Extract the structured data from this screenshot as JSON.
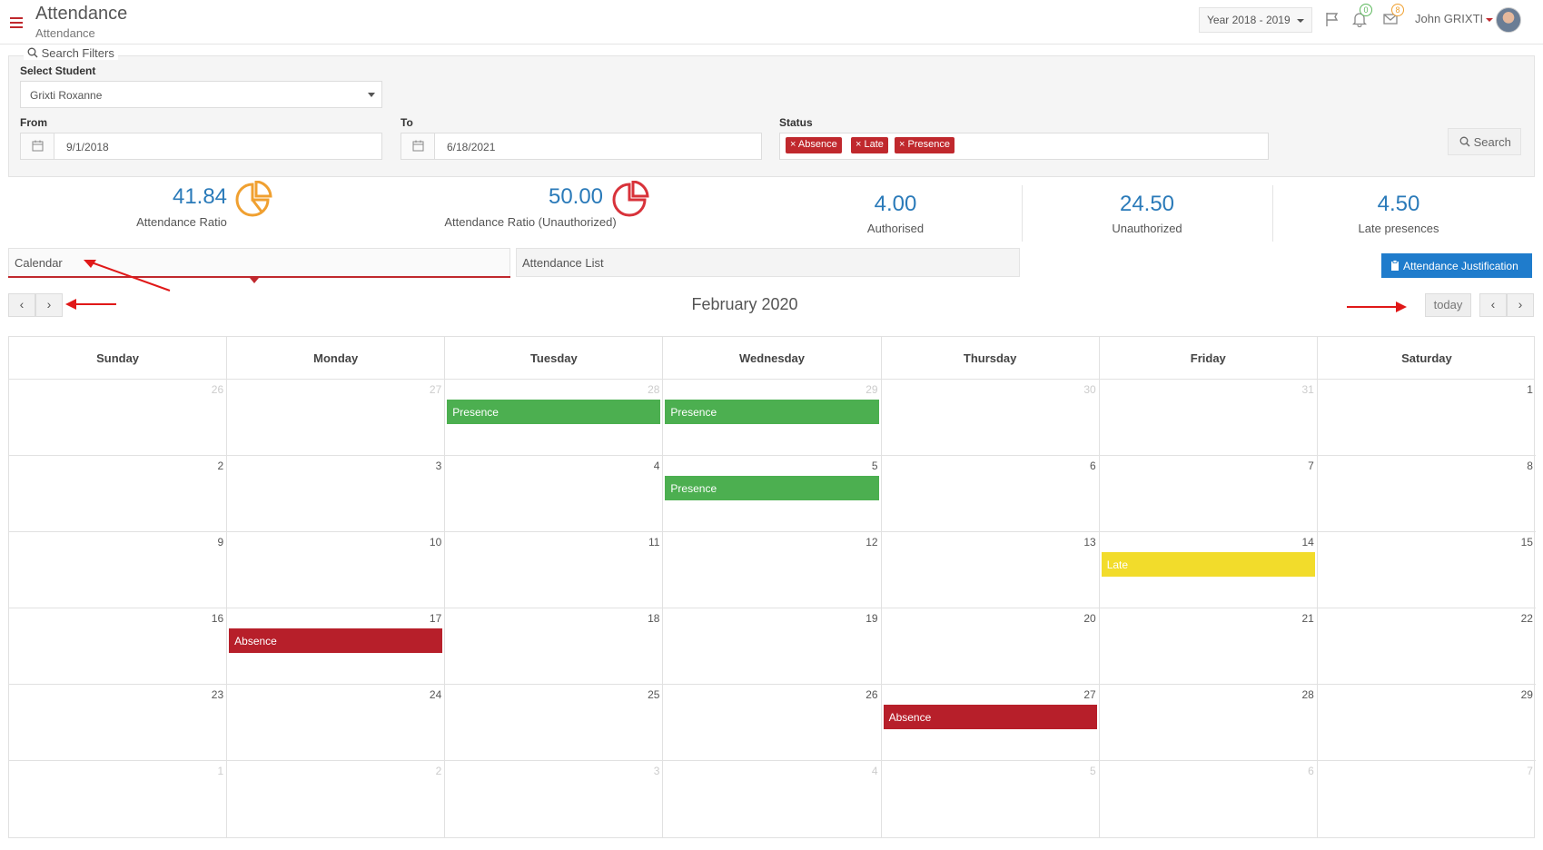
{
  "header": {
    "title": "Attendance",
    "subtitle": "Attendance",
    "year": "Year 2018 - 2019",
    "notifications_count": "0",
    "messages_count": "8",
    "user_name": "John GRIXTI"
  },
  "filters": {
    "legend": "Search Filters",
    "student_label": "Select Student",
    "student_value": "Grixti Roxanne",
    "from_label": "From",
    "from_value": "9/1/2018",
    "to_label": "To",
    "to_value": "6/18/2021",
    "status_label": "Status",
    "status_tags": [
      "Absence",
      "Late",
      "Presence"
    ],
    "search_label": "Search"
  },
  "stats": [
    {
      "value": "41.84",
      "label": "Attendance Ratio"
    },
    {
      "value": "50.00",
      "label": "Attendance Ratio (Unauthorized)"
    },
    {
      "value": "4.00",
      "label": "Authorised"
    },
    {
      "value": "24.50",
      "label": "Unauthorized"
    },
    {
      "value": "4.50",
      "label": "Late presences"
    }
  ],
  "tabs": [
    "Calendar",
    "Attendance List"
  ],
  "justification_label": "Attendance Justification",
  "calendar": {
    "title": "February 2020",
    "today_label": "today",
    "days_of_week": [
      "Sunday",
      "Monday",
      "Tuesday",
      "Wednesday",
      "Thursday",
      "Friday",
      "Saturday"
    ],
    "weeks": [
      [
        {
          "d": "26",
          "o": true
        },
        {
          "d": "27",
          "o": true
        },
        {
          "d": "28",
          "o": true,
          "e": "Presence"
        },
        {
          "d": "29",
          "o": true,
          "e": "Presence"
        },
        {
          "d": "30",
          "o": true
        },
        {
          "d": "31",
          "o": true
        },
        {
          "d": "1"
        }
      ],
      [
        {
          "d": "2"
        },
        {
          "d": "3"
        },
        {
          "d": "4"
        },
        {
          "d": "5",
          "e": "Presence"
        },
        {
          "d": "6"
        },
        {
          "d": "7"
        },
        {
          "d": "8"
        }
      ],
      [
        {
          "d": "9"
        },
        {
          "d": "10"
        },
        {
          "d": "11"
        },
        {
          "d": "12"
        },
        {
          "d": "13"
        },
        {
          "d": "14",
          "e": "Late"
        },
        {
          "d": "15"
        }
      ],
      [
        {
          "d": "16"
        },
        {
          "d": "17",
          "e": "Absence"
        },
        {
          "d": "18"
        },
        {
          "d": "19"
        },
        {
          "d": "20"
        },
        {
          "d": "21"
        },
        {
          "d": "22"
        }
      ],
      [
        {
          "d": "23"
        },
        {
          "d": "24"
        },
        {
          "d": "25"
        },
        {
          "d": "26"
        },
        {
          "d": "27",
          "e": "Absence"
        },
        {
          "d": "28"
        },
        {
          "d": "29"
        }
      ],
      [
        {
          "d": "1",
          "o": true
        },
        {
          "d": "2",
          "o": true
        },
        {
          "d": "3",
          "o": true
        },
        {
          "d": "4",
          "o": true
        },
        {
          "d": "5",
          "o": true
        },
        {
          "d": "6",
          "o": true
        },
        {
          "d": "7",
          "o": true
        }
      ]
    ]
  },
  "colors": {
    "accent": "#c0282d",
    "presence": "#4caf50",
    "late": "#f2dc2b",
    "absence": "#b71f2a",
    "stat_blue": "#2a7ab9",
    "ratio_orange": "#f0a030"
  }
}
